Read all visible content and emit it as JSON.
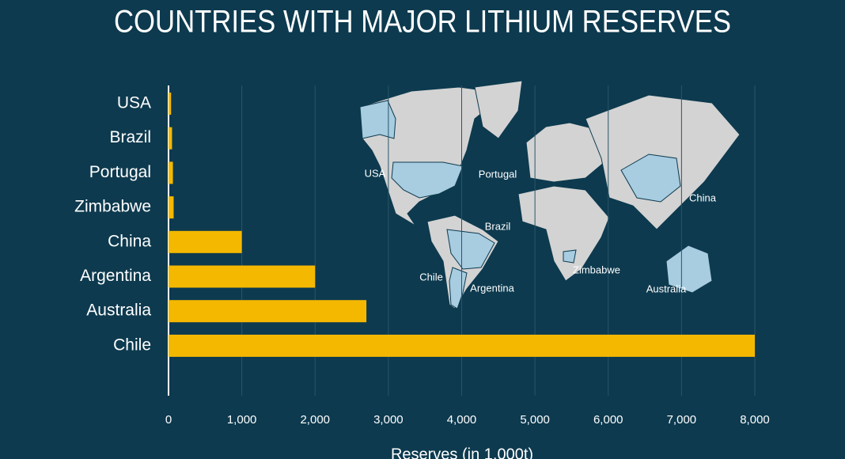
{
  "chart_data": {
    "type": "bar",
    "orientation": "horizontal",
    "title": "COUNTRIES WITH MAJOR LITHIUM RESERVES",
    "xlabel": "Reserves (in 1,000t)",
    "categories": [
      "USA",
      "Brazil",
      "Portugal",
      "Zimbabwe",
      "China",
      "Argentina",
      "Australia",
      "Chile"
    ],
    "values": [
      35,
      48,
      60,
      70,
      1000,
      2000,
      2700,
      8000
    ],
    "color": "#f5b800",
    "xlim": [
      0,
      8000
    ],
    "xticks": [
      0,
      {
        "value": 1000,
        "label": "1,000"
      },
      {
        "value": 2000,
        "label": "2,000"
      },
      {
        "value": 3000,
        "label": "3,000"
      },
      {
        "value": 4000,
        "label": "4,000"
      },
      {
        "value": 5000,
        "label": "5,000"
      },
      {
        "value": 6000,
        "label": "6,000"
      },
      {
        "value": 7000,
        "label": "7,000"
      },
      {
        "value": 8000,
        "label": "8,000"
      }
    ],
    "grid": true,
    "map_labels": [
      "USA",
      "Portugal",
      "China",
      "Brazil",
      "Chile",
      "Argentina",
      "Zimbabwe",
      "Australia"
    ]
  }
}
